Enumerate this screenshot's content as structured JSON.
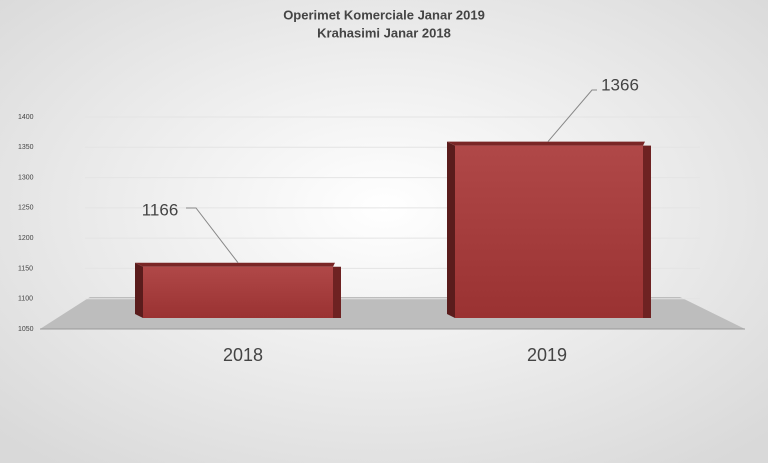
{
  "chart_data": {
    "type": "bar3d",
    "title": "Operimet Komerciale Janar 2019",
    "subtitle": "Krahasimi Janar 2018",
    "categories": [
      "2018",
      "2019"
    ],
    "values": [
      1166,
      1366
    ],
    "color": "#a33a3a",
    "ylim": [
      1050,
      1400
    ],
    "yticks": [
      1050,
      1100,
      1150,
      1200,
      1250,
      1300,
      1350,
      1400
    ],
    "grid": true
  }
}
